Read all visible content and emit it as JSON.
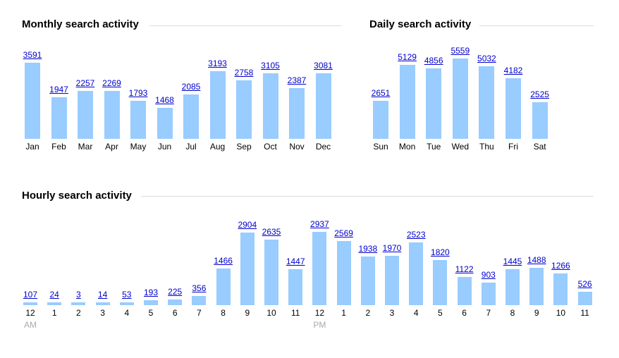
{
  "colors": {
    "bar": "#99ccff",
    "link": "#0000cc",
    "rule": "#dddddd",
    "sublabel": "#aaaaaa"
  },
  "chart_data": [
    {
      "type": "bar",
      "title": "Monthly search activity",
      "categories": [
        "Jan",
        "Feb",
        "Mar",
        "Apr",
        "May",
        "Jun",
        "Jul",
        "Aug",
        "Sep",
        "Oct",
        "Nov",
        "Dec"
      ],
      "values": [
        3591,
        1947,
        2257,
        2269,
        1793,
        1468,
        2085,
        3193,
        2758,
        3105,
        2387,
        3081
      ]
    },
    {
      "type": "bar",
      "title": "Daily search activity",
      "categories": [
        "Sun",
        "Mon",
        "Tue",
        "Wed",
        "Thu",
        "Fri",
        "Sat"
      ],
      "values": [
        2651,
        5129,
        4856,
        5559,
        5032,
        4182,
        2525
      ]
    },
    {
      "type": "bar",
      "title": "Hourly search activity",
      "categories": [
        "12",
        "1",
        "2",
        "3",
        "4",
        "5",
        "6",
        "7",
        "8",
        "9",
        "10",
        "11",
        "12",
        "1",
        "2",
        "3",
        "4",
        "5",
        "6",
        "7",
        "8",
        "9",
        "10",
        "11"
      ],
      "sublabels": {
        "0": "AM",
        "12": "PM"
      },
      "values": [
        107,
        24,
        3,
        14,
        53,
        193,
        225,
        356,
        1466,
        2904,
        2635,
        1447,
        2937,
        2569,
        1938,
        1970,
        2523,
        1820,
        1122,
        903,
        1445,
        1488,
        1266,
        526
      ]
    }
  ]
}
